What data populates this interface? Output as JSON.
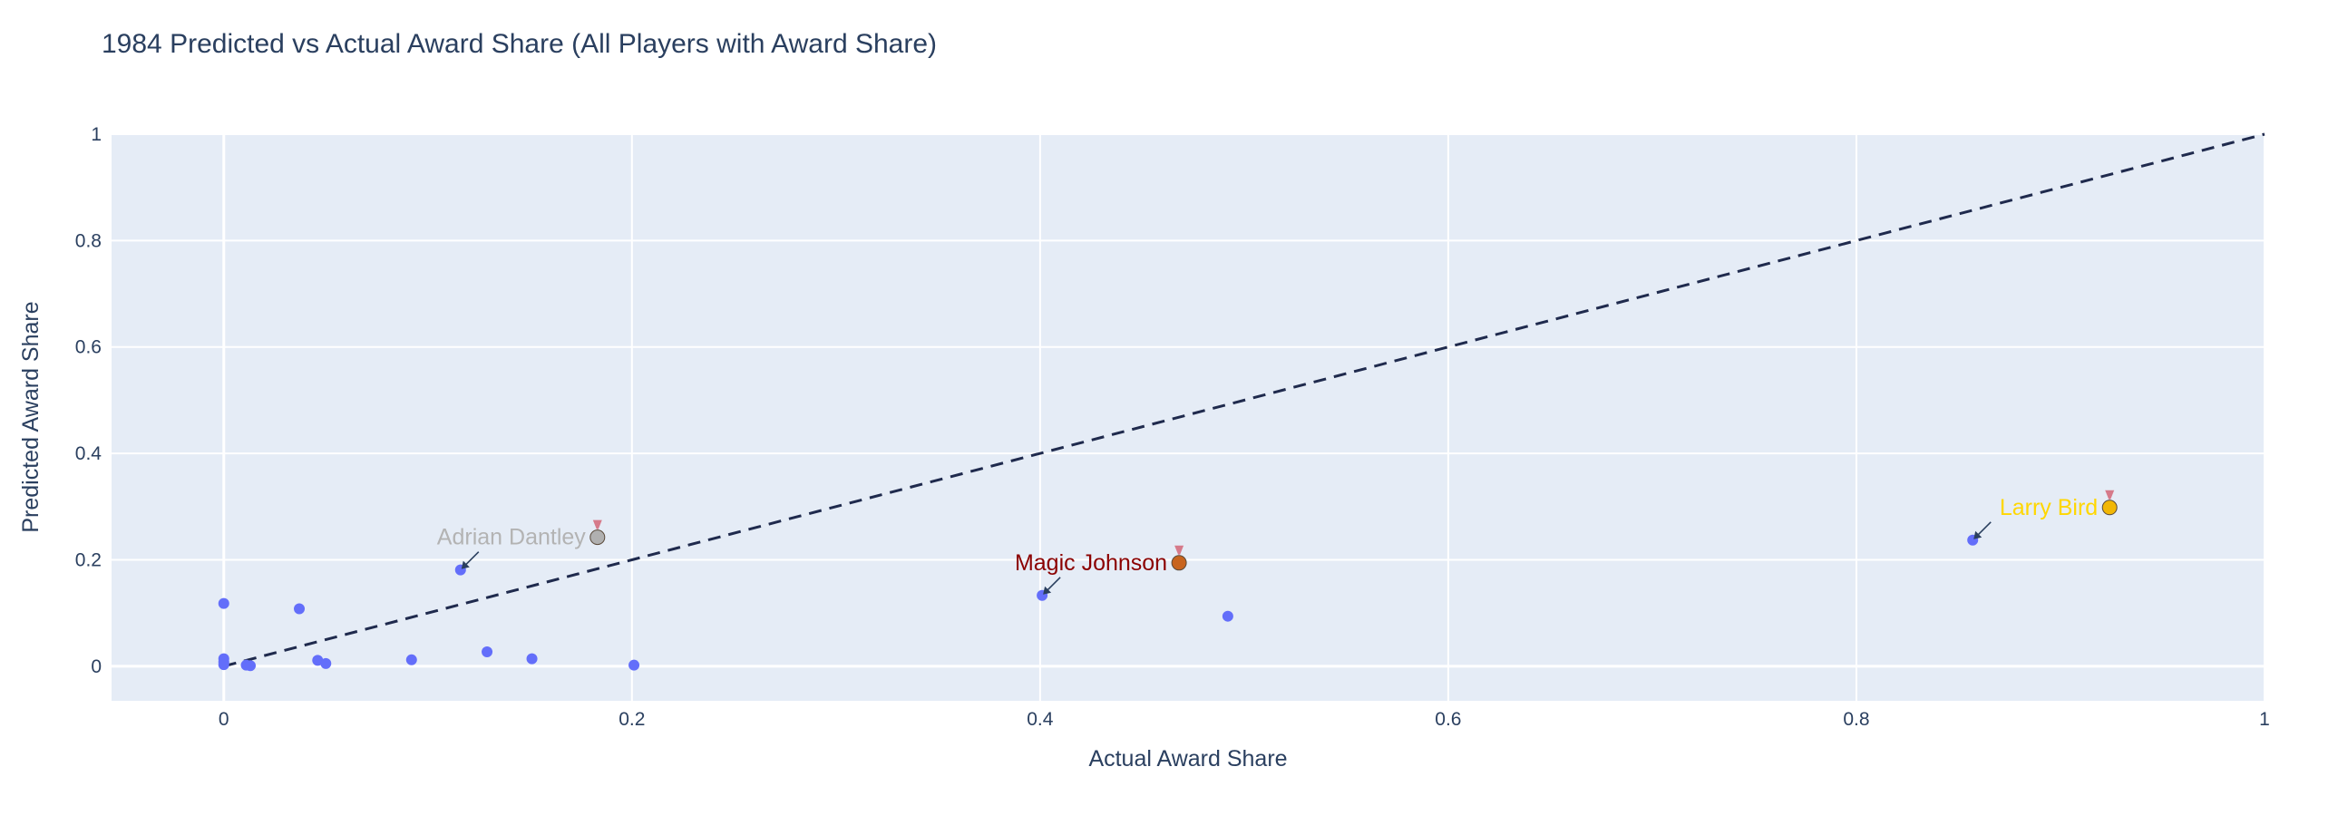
{
  "chart_data": {
    "type": "scatter",
    "title": "1984 Predicted vs Actual Award Share (All Players with Award Share)",
    "xlabel": "Actual Award Share",
    "ylabel": "Predicted Award Share",
    "xlim": [
      -0.055,
      1.0
    ],
    "ylim": [
      -0.065,
      1.0
    ],
    "xticks": [
      0,
      0.2,
      0.4,
      0.6,
      0.8,
      1
    ],
    "xtick_labels": [
      "0",
      "0.2",
      "0.4",
      "0.6",
      "0.8",
      "1"
    ],
    "yticks": [
      0,
      0.2,
      0.4,
      0.6,
      0.8,
      1
    ],
    "ytick_labels": [
      "0",
      "0.2",
      "0.4",
      "0.6",
      "0.8",
      "1"
    ],
    "grid": true,
    "background": "#e5ecf6",
    "marker_color": "#636efa",
    "reference_line": {
      "x": [
        0,
        1
      ],
      "y": [
        0,
        1
      ],
      "style": "dashed",
      "color": "#1f2a4d"
    },
    "points": [
      {
        "x": 0.0,
        "y": 0.118
      },
      {
        "x": 0.0,
        "y": 0.014
      },
      {
        "x": 0.0,
        "y": 0.008
      },
      {
        "x": 0.0,
        "y": 0.003
      },
      {
        "x": 0.011,
        "y": 0.002
      },
      {
        "x": 0.013,
        "y": 0.001
      },
      {
        "x": 0.037,
        "y": 0.108
      },
      {
        "x": 0.046,
        "y": 0.011
      },
      {
        "x": 0.05,
        "y": 0.005
      },
      {
        "x": 0.092,
        "y": 0.012
      },
      {
        "x": 0.116,
        "y": 0.181
      },
      {
        "x": 0.129,
        "y": 0.027
      },
      {
        "x": 0.151,
        "y": 0.014
      },
      {
        "x": 0.201,
        "y": 0.002
      },
      {
        "x": 0.401,
        "y": 0.133
      },
      {
        "x": 0.492,
        "y": 0.094
      },
      {
        "x": 0.857,
        "y": 0.237
      }
    ],
    "annotations": [
      {
        "text": "Adrian Dantley",
        "medal": "silver",
        "x": 0.116,
        "y": 0.181,
        "color": "#b3b3b3",
        "medal_color": "#b0b0b0"
      },
      {
        "text": "Magic Johnson",
        "medal": "bronze",
        "x": 0.401,
        "y": 0.133,
        "color": "#8b0000",
        "medal_color": "#c8641e"
      },
      {
        "text": "Larry Bird",
        "medal": "gold",
        "x": 0.857,
        "y": 0.237,
        "color": "#ffd700",
        "medal_color": "#f2b705"
      }
    ]
  }
}
